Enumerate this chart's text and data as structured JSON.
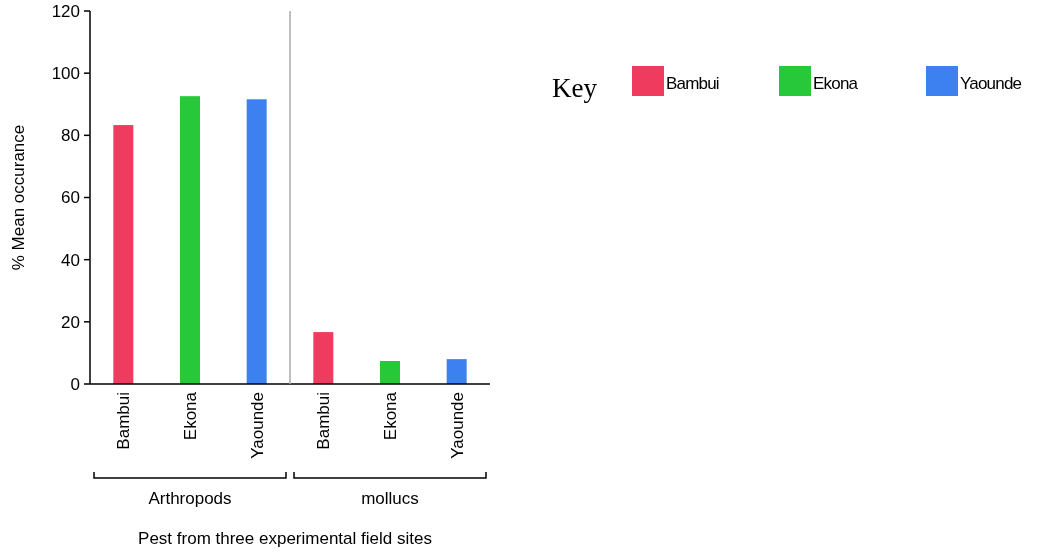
{
  "chart_data": {
    "type": "bar",
    "xlabel": "Pest from three experimental field sites",
    "ylabel": "% Mean occurance",
    "legend_title": "Key",
    "categories": [
      "Arthropods",
      "mollucs"
    ],
    "series": [
      {
        "name": "Bambui",
        "color": "#ef3b5d",
        "values": [
          83.3,
          16.7
        ]
      },
      {
        "name": "Ekona",
        "color": "#27c93a",
        "values": [
          92.6,
          7.4
        ]
      },
      {
        "name": "Yaounde",
        "color": "#3d80ef",
        "values": [
          91.6,
          8.0
        ]
      }
    ],
    "ylim": [
      0,
      120
    ],
    "yticks": [
      0,
      20,
      40,
      60,
      80,
      100,
      120
    ],
    "legend": "right"
  }
}
